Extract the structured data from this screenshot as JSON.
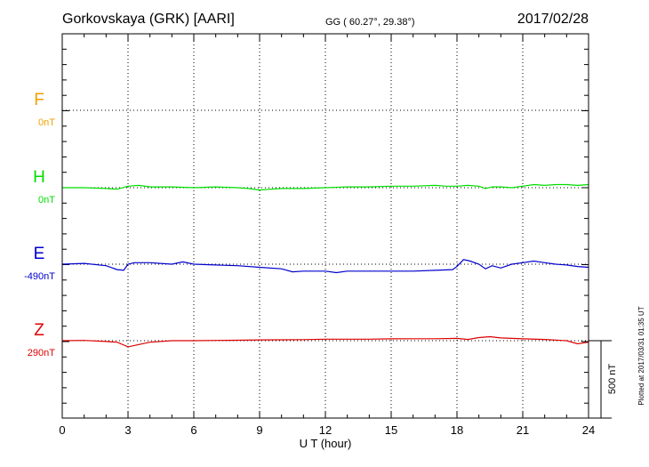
{
  "header": {
    "station": "Gorkovskaya (GRK)  [AARI]",
    "coords": "GG ( 60.27°,  29.38°)",
    "date": "2017/02/28"
  },
  "footer": {
    "plotted": "Plotted at 2017/03/31 01:35 UT"
  },
  "scale_bar": {
    "label": "500 nT",
    "value_nT": 500
  },
  "colors": {
    "F": "#f0a000",
    "H": "#00dd00",
    "E": "#0000cc",
    "Z": "#dd0000",
    "axis": "#000000"
  },
  "chart_data": {
    "type": "line",
    "title": "",
    "xlabel": "U T (hour)",
    "ylabel": "",
    "xlim": [
      0,
      24
    ],
    "x_ticks": [
      0,
      3,
      6,
      9,
      12,
      15,
      18,
      21,
      24
    ],
    "x_tick_labels": [
      "0",
      "3",
      "6",
      "9",
      "12",
      "15",
      "18",
      "21",
      "24"
    ],
    "nT_per_band": 500,
    "grid": true,
    "series": [
      {
        "name": "F",
        "baseline_label": "0nT",
        "band_index": 0,
        "points": []
      },
      {
        "name": "H",
        "baseline_label": "0nT",
        "band_index": 1,
        "points": [
          [
            0,
            0
          ],
          [
            1,
            0
          ],
          [
            2,
            -5
          ],
          [
            2.5,
            -10
          ],
          [
            3,
            10
          ],
          [
            3.5,
            15
          ],
          [
            4,
            5
          ],
          [
            5,
            5
          ],
          [
            6,
            0
          ],
          [
            7,
            5
          ],
          [
            8,
            0
          ],
          [
            8.5,
            -5
          ],
          [
            9,
            -15
          ],
          [
            9.5,
            -10
          ],
          [
            10,
            -5
          ],
          [
            11,
            -5
          ],
          [
            12,
            0
          ],
          [
            13,
            5
          ],
          [
            14,
            5
          ],
          [
            15,
            10
          ],
          [
            16,
            10
          ],
          [
            17,
            15
          ],
          [
            17.5,
            10
          ],
          [
            18,
            10
          ],
          [
            18.5,
            15
          ],
          [
            19,
            10
          ],
          [
            19.3,
            -5
          ],
          [
            19.6,
            5
          ],
          [
            20,
            5
          ],
          [
            20.5,
            0
          ],
          [
            21,
            10
          ],
          [
            21.5,
            20
          ],
          [
            22,
            15
          ],
          [
            22.5,
            20
          ],
          [
            23,
            20
          ],
          [
            23.5,
            15
          ],
          [
            24,
            20
          ]
        ]
      },
      {
        "name": "E",
        "baseline_label": "-490nT",
        "band_index": 2,
        "points": [
          [
            0,
            -490
          ],
          [
            1,
            -485
          ],
          [
            2,
            -500
          ],
          [
            2.5,
            -525
          ],
          [
            2.8,
            -530
          ],
          [
            3,
            -490
          ],
          [
            3.3,
            -480
          ],
          [
            4,
            -480
          ],
          [
            5,
            -490
          ],
          [
            5.5,
            -475
          ],
          [
            6,
            -490
          ],
          [
            7,
            -495
          ],
          [
            8,
            -500
          ],
          [
            9,
            -510
          ],
          [
            10,
            -520
          ],
          [
            10.5,
            -540
          ],
          [
            11,
            -535
          ],
          [
            12,
            -535
          ],
          [
            12.5,
            -545
          ],
          [
            13,
            -535
          ],
          [
            14,
            -535
          ],
          [
            15,
            -535
          ],
          [
            16,
            -535
          ],
          [
            17,
            -530
          ],
          [
            17.8,
            -525
          ],
          [
            18,
            -505
          ],
          [
            18.3,
            -460
          ],
          [
            18.6,
            -470
          ],
          [
            19,
            -490
          ],
          [
            19.3,
            -520
          ],
          [
            19.6,
            -500
          ],
          [
            20,
            -515
          ],
          [
            20.5,
            -490
          ],
          [
            21,
            -480
          ],
          [
            21.5,
            -470
          ],
          [
            22,
            -480
          ],
          [
            22.5,
            -490
          ],
          [
            23,
            -495
          ],
          [
            23.5,
            -505
          ],
          [
            24,
            -510
          ]
        ]
      },
      {
        "name": "Z",
        "baseline_label": "290nT",
        "band_index": 3,
        "points": [
          [
            0,
            290
          ],
          [
            1,
            292
          ],
          [
            2,
            285
          ],
          [
            2.5,
            280
          ],
          [
            3,
            250
          ],
          [
            3.5,
            265
          ],
          [
            4,
            280
          ],
          [
            5,
            290
          ],
          [
            6,
            290
          ],
          [
            7,
            292
          ],
          [
            8,
            293
          ],
          [
            9,
            295
          ],
          [
            10,
            296
          ],
          [
            11,
            297
          ],
          [
            12,
            300
          ],
          [
            13,
            300
          ],
          [
            14,
            300
          ],
          [
            15,
            302
          ],
          [
            16,
            303
          ],
          [
            17,
            303
          ],
          [
            18,
            305
          ],
          [
            18.5,
            298
          ],
          [
            19,
            310
          ],
          [
            19.5,
            316
          ],
          [
            20,
            308
          ],
          [
            21,
            302
          ],
          [
            22,
            298
          ],
          [
            23,
            290
          ],
          [
            23.5,
            270
          ],
          [
            24,
            280
          ]
        ]
      }
    ]
  }
}
